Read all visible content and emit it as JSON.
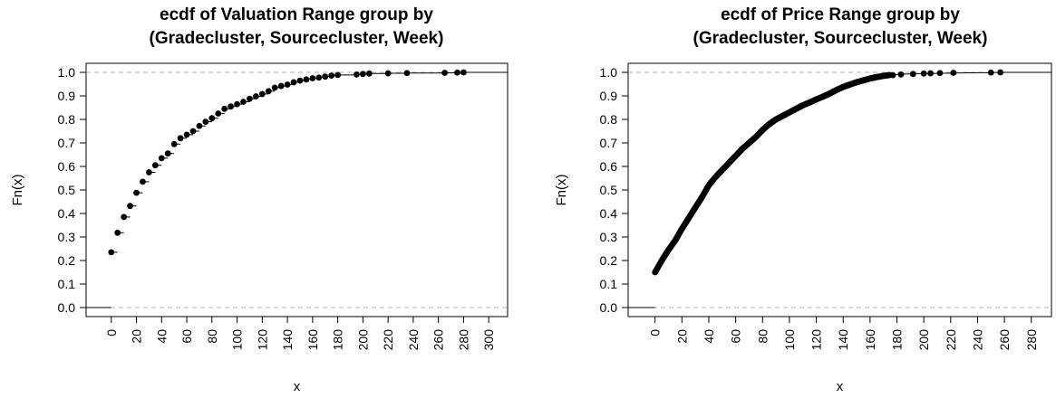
{
  "chart_data": [
    {
      "type": "scatter",
      "subtype": "ecdf",
      "title_lines": [
        "ecdf of Valuation Range group by",
        "(Gradecluster, Sourcecluster, Week)"
      ],
      "xlabel": "x",
      "ylabel": "Fn(x)",
      "xlim": [
        -20,
        315
      ],
      "ylim": [
        0,
        1
      ],
      "x_ticks": [
        0,
        20,
        40,
        60,
        80,
        100,
        120,
        140,
        160,
        180,
        200,
        220,
        240,
        260,
        280,
        300
      ],
      "y_ticks": [
        0.0,
        0.1,
        0.2,
        0.3,
        0.4,
        0.5,
        0.6,
        0.7,
        0.8,
        0.9,
        1.0
      ],
      "grid": false,
      "reference_lines": [
        0,
        1
      ],
      "points": [
        [
          0,
          0.235
        ],
        [
          5,
          0.318
        ],
        [
          10,
          0.385
        ],
        [
          15,
          0.432
        ],
        [
          20,
          0.488
        ],
        [
          25,
          0.535
        ],
        [
          30,
          0.575
        ],
        [
          35,
          0.605
        ],
        [
          40,
          0.635
        ],
        [
          45,
          0.655
        ],
        [
          50,
          0.695
        ],
        [
          55,
          0.72
        ],
        [
          60,
          0.735
        ],
        [
          65,
          0.75
        ],
        [
          70,
          0.772
        ],
        [
          75,
          0.79
        ],
        [
          80,
          0.805
        ],
        [
          85,
          0.825
        ],
        [
          90,
          0.845
        ],
        [
          95,
          0.855
        ],
        [
          100,
          0.865
        ],
        [
          105,
          0.875
        ],
        [
          110,
          0.888
        ],
        [
          115,
          0.898
        ],
        [
          120,
          0.908
        ],
        [
          125,
          0.92
        ],
        [
          130,
          0.935
        ],
        [
          135,
          0.942
        ],
        [
          140,
          0.948
        ],
        [
          145,
          0.958
        ],
        [
          150,
          0.965
        ],
        [
          155,
          0.97
        ],
        [
          160,
          0.975
        ],
        [
          165,
          0.978
        ],
        [
          170,
          0.982
        ],
        [
          175,
          0.986
        ],
        [
          180,
          0.989
        ],
        [
          195,
          0.991
        ],
        [
          200,
          0.993
        ],
        [
          205,
          0.995
        ],
        [
          220,
          0.996
        ],
        [
          235,
          0.997
        ],
        [
          265,
          0.998
        ],
        [
          275,
          0.999
        ],
        [
          280,
          1.0
        ]
      ]
    },
    {
      "type": "scatter",
      "subtype": "ecdf",
      "title_lines": [
        "ecdf of Price Range group by",
        "(Gradecluster, Sourcecluster, Week)"
      ],
      "xlabel": "x",
      "ylabel": "Fn(x)",
      "xlim": [
        -20,
        295
      ],
      "ylim": [
        0,
        1
      ],
      "x_ticks": [
        0,
        20,
        40,
        60,
        80,
        100,
        120,
        140,
        160,
        180,
        200,
        220,
        240,
        260,
        280
      ],
      "y_ticks": [
        0.0,
        0.1,
        0.2,
        0.3,
        0.4,
        0.5,
        0.6,
        0.7,
        0.8,
        0.9,
        1.0
      ],
      "grid": false,
      "reference_lines": [
        0,
        1
      ],
      "curve_anchors": [
        [
          0,
          0.15
        ],
        [
          5,
          0.2
        ],
        [
          10,
          0.245
        ],
        [
          15,
          0.285
        ],
        [
          20,
          0.335
        ],
        [
          25,
          0.38
        ],
        [
          30,
          0.425
        ],
        [
          35,
          0.47
        ],
        [
          40,
          0.52
        ],
        [
          45,
          0.555
        ],
        [
          50,
          0.585
        ],
        [
          55,
          0.615
        ],
        [
          60,
          0.645
        ],
        [
          65,
          0.675
        ],
        [
          70,
          0.7
        ],
        [
          75,
          0.725
        ],
        [
          80,
          0.755
        ],
        [
          85,
          0.78
        ],
        [
          90,
          0.8
        ],
        [
          95,
          0.815
        ],
        [
          100,
          0.83
        ],
        [
          105,
          0.845
        ],
        [
          110,
          0.86
        ],
        [
          115,
          0.872
        ],
        [
          120,
          0.885
        ],
        [
          125,
          0.897
        ],
        [
          130,
          0.91
        ],
        [
          135,
          0.925
        ],
        [
          140,
          0.938
        ],
        [
          145,
          0.948
        ],
        [
          150,
          0.958
        ],
        [
          155,
          0.966
        ],
        [
          160,
          0.974
        ],
        [
          165,
          0.98
        ],
        [
          170,
          0.985
        ],
        [
          175,
          0.989
        ],
        [
          180,
          0.992
        ],
        [
          190,
          0.994
        ],
        [
          200,
          0.995
        ],
        [
          210,
          0.996
        ],
        [
          220,
          0.997
        ],
        [
          230,
          0.998
        ],
        [
          250,
          0.999
        ],
        [
          255,
          1.0
        ]
      ],
      "isolated_points": [
        [
          177,
          0.988
        ],
        [
          183,
          0.991
        ],
        [
          192,
          0.993
        ],
        [
          200,
          0.995
        ],
        [
          205,
          0.996
        ],
        [
          212,
          0.997
        ],
        [
          222,
          0.998
        ],
        [
          250,
          0.999
        ],
        [
          257,
          1.0
        ]
      ]
    }
  ]
}
